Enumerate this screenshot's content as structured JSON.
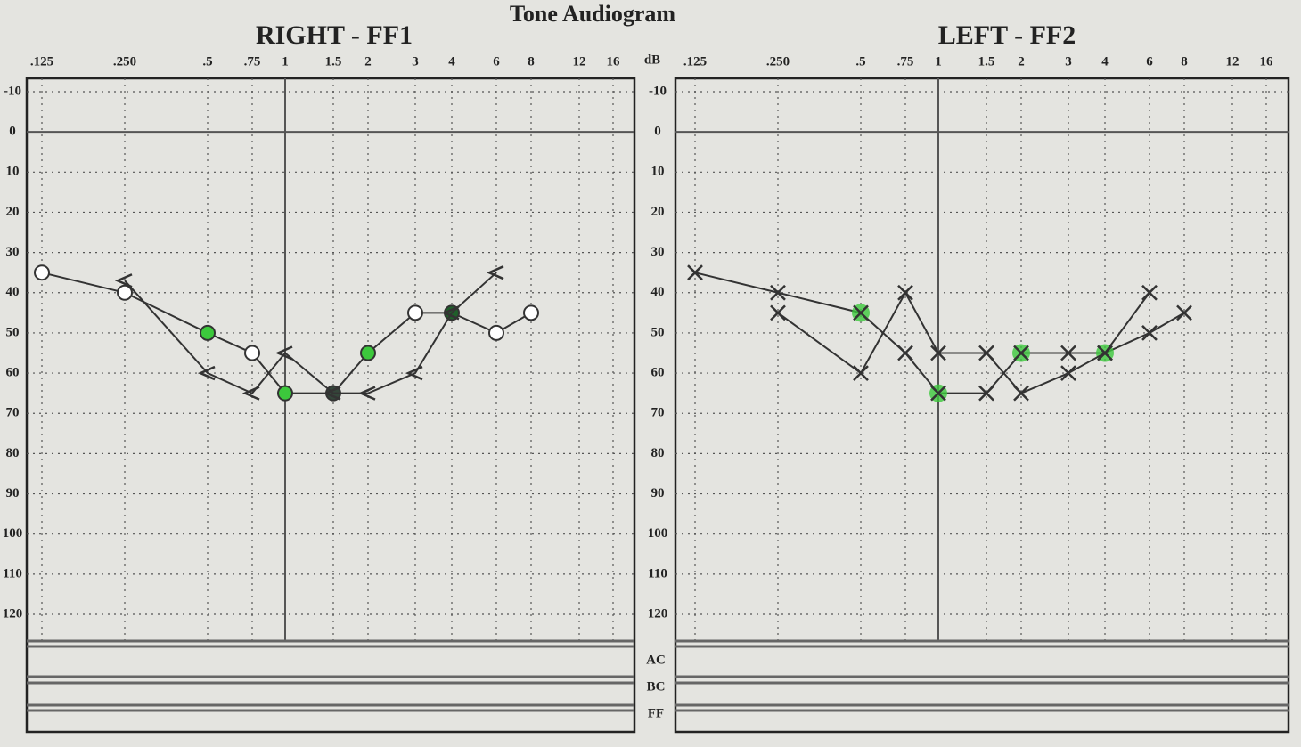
{
  "title": "Tone Audiogram",
  "chart_data": [
    {
      "type": "line",
      "title": "RIGHT - FF1",
      "categories": [
        ".125",
        ".250",
        ".5",
        ".75",
        "1",
        "1.5",
        "2",
        "3",
        "4",
        "6",
        "8",
        "12",
        "16"
      ],
      "ylim": [
        -10,
        120
      ],
      "yticks": [
        -10,
        0,
        10,
        20,
        30,
        40,
        50,
        60,
        70,
        80,
        90,
        100,
        110,
        120
      ],
      "inverted": true,
      "grid": true,
      "series": [
        {
          "marker": "circle",
          "color": "#333333",
          "values": [
            35,
            40,
            50,
            55,
            65,
            65,
            55,
            45,
            45,
            50,
            45,
            null,
            null
          ],
          "point_colors": [
            "#ffffff",
            "#ffffff",
            "#3cc83c",
            "#ffffff",
            "#3cc83c",
            "#34463a",
            "#3cc83c",
            "#ffffff",
            "#1f5f2a",
            "#ffffff",
            "#ffffff",
            null,
            null
          ]
        },
        {
          "marker": "chevron",
          "color": "#333333",
          "values": [
            null,
            37,
            60,
            65,
            55,
            65,
            65,
            60,
            45,
            35,
            null,
            null,
            null
          ]
        }
      ]
    },
    {
      "type": "line",
      "title": "LEFT - FF2",
      "ylabel": "dB",
      "categories": [
        ".125",
        ".250",
        ".5",
        ".75",
        "1",
        "1.5",
        "2",
        "3",
        "4",
        "6",
        "8",
        "12",
        "16"
      ],
      "ylim": [
        -10,
        120
      ],
      "yticks": [
        -10,
        0,
        10,
        20,
        30,
        40,
        50,
        60,
        70,
        80,
        90,
        100,
        110,
        120
      ],
      "inverted": true,
      "grid": true,
      "row_labels": [
        "AC",
        "BC",
        "FF"
      ],
      "series": [
        {
          "marker": "x",
          "color": "#333333",
          "values": [
            35,
            40,
            45,
            55,
            65,
            65,
            55,
            55,
            55,
            50,
            45,
            null,
            null
          ],
          "point_colors": [
            "#333333",
            "#333333",
            "#3cc83c",
            "#333333",
            "#3cc83c",
            "#333333",
            "#3cc83c",
            "#333333",
            "#3cc83c",
            "#333333",
            "#333333",
            null,
            null
          ]
        },
        {
          "marker": "x",
          "color": "#333333",
          "values": [
            null,
            45,
            60,
            40,
            55,
            55,
            65,
            60,
            55,
            40,
            null,
            null,
            null
          ]
        }
      ]
    }
  ]
}
